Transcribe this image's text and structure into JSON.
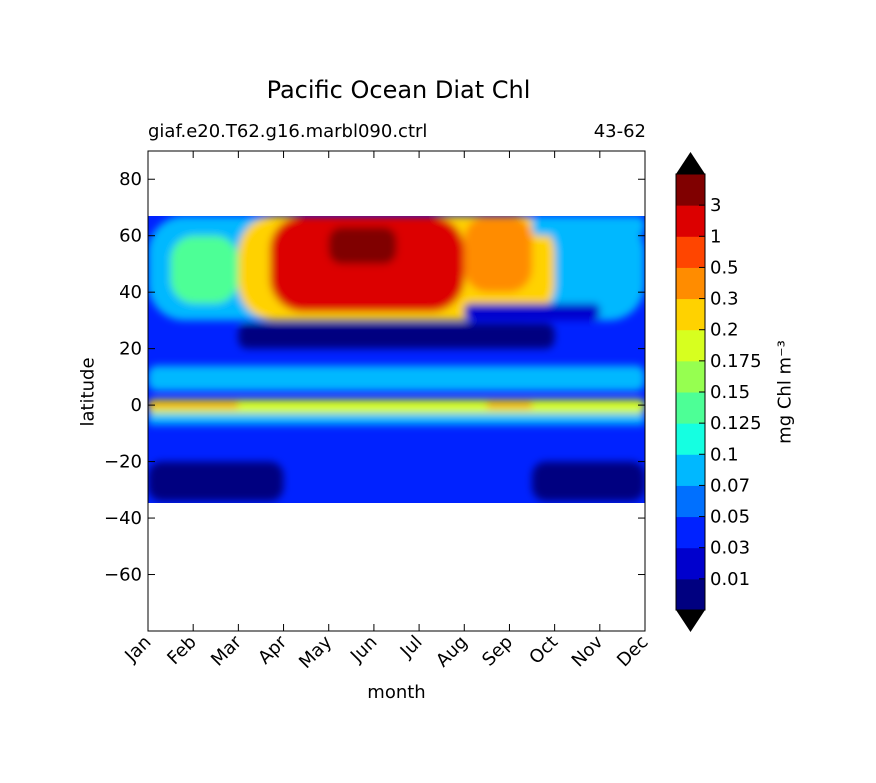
{
  "chart_data": {
    "type": "heatmap",
    "title": "Pacific Ocean Diat Chl",
    "subtitle_left": "giaf.e20.T62.g16.marbl090.ctrl",
    "subtitle_right": "43-62",
    "xlabel": "month",
    "ylabel": "latitude",
    "x_ticks": [
      "Jan",
      "Feb",
      "Mar",
      "Apr",
      "May",
      "Jun",
      "Jul",
      "Aug",
      "Sep",
      "Oct",
      "Nov",
      "Dec"
    ],
    "y_ticks": [
      80,
      60,
      40,
      20,
      0,
      -20,
      -40,
      -60
    ],
    "y_tick_labels": [
      "80",
      "60",
      "40",
      "20",
      "0",
      "−20",
      "−40",
      "−60"
    ],
    "ylim": [
      -80,
      90
    ],
    "data_lat_range": [
      -34,
      67
    ],
    "colorbar": {
      "label": "mg Chl m⁻³",
      "levels": [
        0.01,
        0.03,
        0.05,
        0.07,
        0.1,
        0.125,
        0.15,
        0.175,
        0.2,
        0.3,
        0.5,
        1,
        3
      ],
      "tick_labels": [
        "0.01",
        "0.03",
        "0.05",
        "0.07",
        "0.1",
        "0.125",
        "0.15",
        "0.175",
        "0.2",
        "0.3",
        "0.5",
        "1",
        "3"
      ],
      "colors": [
        "#000080",
        "#0000cd",
        "#0022ff",
        "#0070ff",
        "#00b8ff",
        "#15ffe1",
        "#4dff96",
        "#96ff50",
        "#d7ff1f",
        "#ffd200",
        "#ff8c00",
        "#ff4500",
        "#dc0000",
        "#800000"
      ],
      "extend": "both",
      "under_color": "#000000",
      "over_color": "#000000"
    },
    "field": {
      "months": [
        1,
        2,
        3,
        4,
        5,
        6,
        7,
        8,
        9,
        10,
        11,
        12
      ],
      "regions": [
        {
          "desc": "background",
          "level": 2
        },
        {
          "lat": [
            30,
            67
          ],
          "months": [
            1,
            12
          ],
          "level": 4
        },
        {
          "lat": [
            36,
            60
          ],
          "months": [
            1.5,
            3
          ],
          "level": 6
        },
        {
          "lat": [
            30,
            67
          ],
          "months": [
            3,
            10
          ],
          "level": 9
        },
        {
          "lat": [
            33,
            67
          ],
          "months": [
            3.7,
            8
          ],
          "level": 12
        },
        {
          "lat": [
            50,
            63
          ],
          "months": [
            5,
            6.5
          ],
          "level": 13
        },
        {
          "lat": [
            40,
            67
          ],
          "months": [
            8,
            9.5
          ],
          "level": 10
        },
        {
          "lat": [
            60,
            67
          ],
          "months": [
            9.5,
            12
          ],
          "level": 4
        },
        {
          "lat": [
            -34,
            -20
          ],
          "months": [
            1,
            4
          ],
          "level": 0
        },
        {
          "lat": [
            -34,
            -20
          ],
          "months": [
            9.5,
            12
          ],
          "level": 0
        },
        {
          "lat": [
            20,
            29
          ],
          "months": [
            3,
            10
          ],
          "level": 0
        },
        {
          "lat": [
            30,
            36
          ],
          "months": [
            8,
            11
          ],
          "level": 1
        },
        {
          "lat": [
            5,
            14
          ],
          "months": [
            1,
            12
          ],
          "level": 4
        },
        {
          "lat": [
            -3,
            2
          ],
          "months": [
            1,
            12
          ],
          "level": 8
        },
        {
          "lat": [
            -1,
            1
          ],
          "months": [
            1,
            3
          ],
          "level": 10
        },
        {
          "lat": [
            -1,
            1
          ],
          "months": [
            8.5,
            9.5
          ],
          "level": 10
        },
        {
          "lat": [
            -7,
            -3
          ],
          "months": [
            1,
            12
          ],
          "level": 4
        }
      ]
    }
  }
}
